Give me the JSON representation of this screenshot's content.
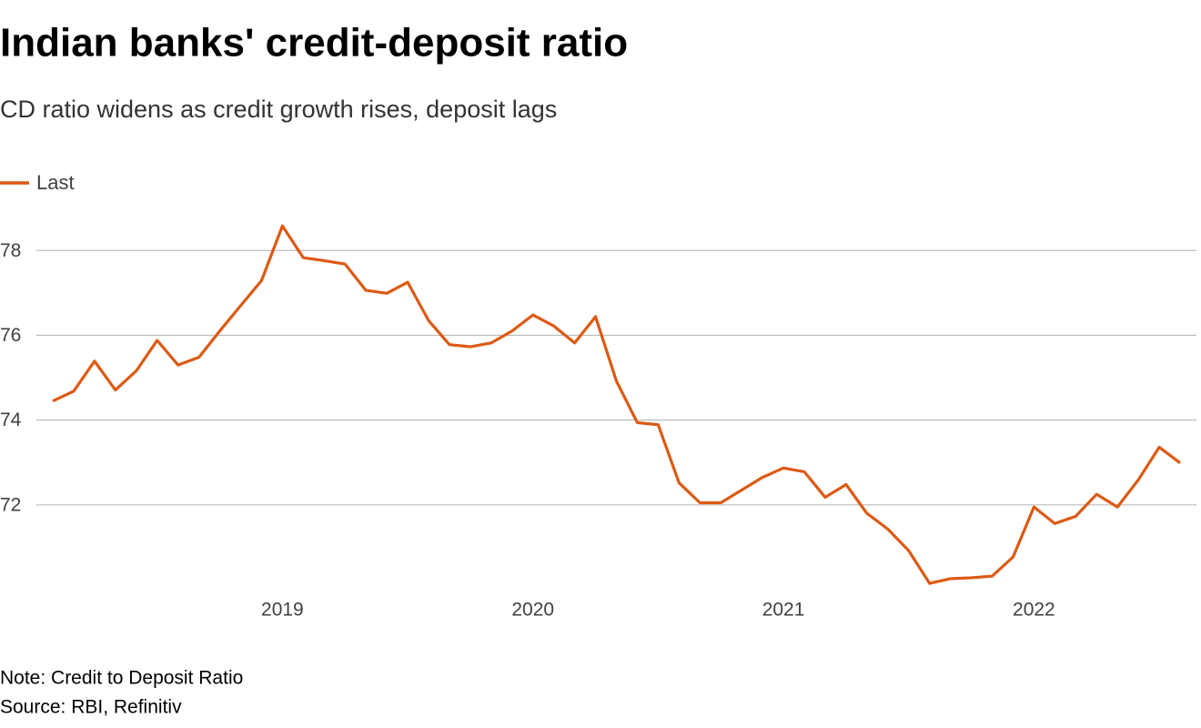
{
  "chart_data": {
    "type": "line",
    "title": "Indian banks' credit-deposit ratio",
    "subtitle": "CD ratio widens as credit growth rises, deposit lags",
    "note": "Note: Credit to Deposit Ratio",
    "source": "Source: RBI, Refinitiv",
    "categories": [
      null,
      null,
      null,
      null,
      null,
      null,
      null,
      null,
      null,
      null,
      null,
      "2019",
      null,
      null,
      null,
      null,
      null,
      null,
      null,
      null,
      null,
      null,
      null,
      "2020",
      null,
      null,
      null,
      null,
      null,
      null,
      null,
      null,
      null,
      null,
      null,
      "2021",
      null,
      null,
      null,
      null,
      null,
      null,
      null,
      null,
      null,
      null,
      null,
      "2022",
      null,
      null,
      null,
      null,
      null,
      null,
      null
    ],
    "series": [
      {
        "name": "Last",
        "color": "#dc5a14",
        "values": [
          74.45,
          74.68,
          75.39,
          74.71,
          75.16,
          75.88,
          75.3,
          75.48,
          76.1,
          76.7,
          77.29,
          78.58,
          77.83,
          77.76,
          77.68,
          77.06,
          76.99,
          77.25,
          76.35,
          75.78,
          75.73,
          75.82,
          76.1,
          76.48,
          76.22,
          75.82,
          76.44,
          74.92,
          73.94,
          73.89,
          72.52,
          72.05,
          72.05,
          72.35,
          72.65,
          72.87,
          72.78,
          72.18,
          72.48,
          71.8,
          71.43,
          70.92,
          70.15,
          70.26,
          70.28,
          70.32,
          70.77,
          71.95,
          71.56,
          71.73,
          72.25,
          71.95,
          72.59,
          73.36,
          72.99
        ]
      }
    ],
    "ylim": [
      70,
      78.8
    ],
    "yticks": [
      72,
      74,
      76,
      78
    ],
    "grid": true,
    "legend": "top-left"
  }
}
